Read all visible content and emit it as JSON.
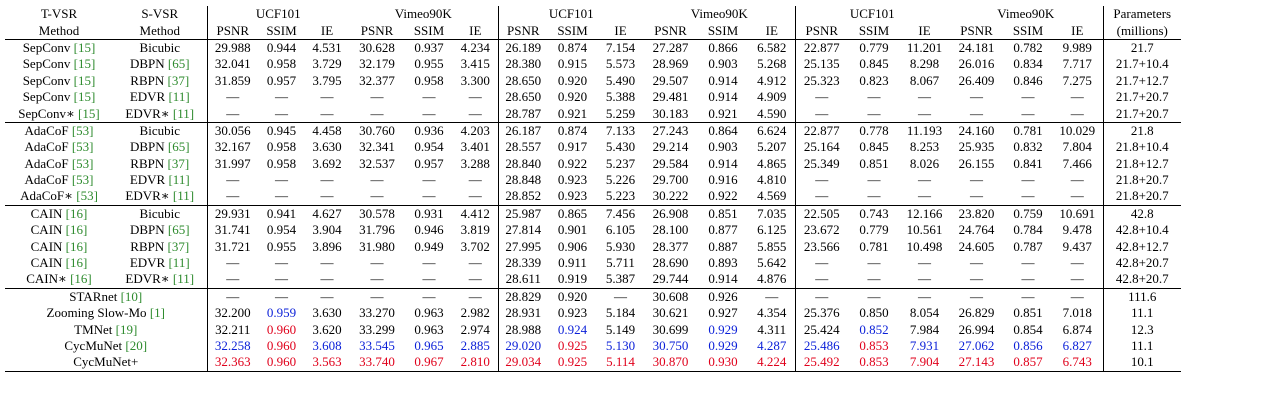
{
  "header": {
    "row1": [
      "T-VSR",
      "S-VSR",
      "UCF101",
      "Vimeo90K",
      "UCF101",
      "Vimeo90K",
      "UCF101",
      "Vimeo90K",
      "Parameters"
    ],
    "row2": [
      "Method",
      "Method",
      "PSNR",
      "SSIM",
      "IE",
      "PSNR",
      "SSIM",
      "IE",
      "PSNR",
      "SSIM",
      "IE",
      "PSNR",
      "SSIM",
      "IE",
      "PSNR",
      "SSIM",
      "IE",
      "PSNR",
      "SSIM",
      "IE",
      "(millions)"
    ]
  },
  "colors": {
    "red": "#e0001b",
    "blue": "#0a1fd8",
    "citation": "#2e8b2e"
  },
  "groups": [
    [
      {
        "t": "SepConv",
        "tr": "[15]",
        "s": "Bicubic",
        "v": [
          "29.988",
          "0.944",
          "4.531",
          "30.628",
          "0.937",
          "4.234",
          "26.189",
          "0.874",
          "7.154",
          "27.287",
          "0.866",
          "6.582",
          "22.877",
          "0.779",
          "11.201",
          "24.181",
          "0.782",
          "9.989"
        ],
        "p": "21.7"
      },
      {
        "t": "SepConv",
        "tr": "[15]",
        "s": "DBPN",
        "sr": "[65]",
        "v": [
          "32.041",
          "0.958",
          "3.729",
          "32.179",
          "0.955",
          "3.415",
          "28.380",
          "0.915",
          "5.573",
          "28.969",
          "0.903",
          "5.268",
          "25.135",
          "0.845",
          "8.298",
          "26.016",
          "0.834",
          "7.717"
        ],
        "p": "21.7+10.4"
      },
      {
        "t": "SepConv",
        "tr": "[15]",
        "s": "RBPN",
        "sr": "[37]",
        "v": [
          "31.859",
          "0.957",
          "3.795",
          "32.377",
          "0.958",
          "3.300",
          "28.650",
          "0.920",
          "5.490",
          "29.507",
          "0.914",
          "4.912",
          "25.323",
          "0.823",
          "8.067",
          "26.409",
          "0.846",
          "7.275"
        ],
        "p": "21.7+12.7"
      },
      {
        "t": "SepConv",
        "tr": "[15]",
        "s": "EDVR",
        "sr": "[11]",
        "v": [
          "—",
          "—",
          "—",
          "—",
          "—",
          "—",
          "28.650",
          "0.920",
          "5.388",
          "29.481",
          "0.914",
          "4.909",
          "—",
          "—",
          "—",
          "—",
          "—",
          "—"
        ],
        "p": "21.7+20.7"
      },
      {
        "t": "SepConv∗",
        "tr": "[15]",
        "s": "EDVR∗",
        "sr": "[11]",
        "v": [
          "—",
          "—",
          "—",
          "—",
          "—",
          "—",
          "28.787",
          "0.921",
          "5.259",
          "30.183",
          "0.921",
          "4.590",
          "—",
          "—",
          "—",
          "—",
          "—",
          "—"
        ],
        "p": "21.7+20.7"
      }
    ],
    [
      {
        "t": "AdaCoF",
        "tr": "[53]",
        "s": "Bicubic",
        "v": [
          "30.056",
          "0.945",
          "4.458",
          "30.760",
          "0.936",
          "4.203",
          "26.187",
          "0.874",
          "7.133",
          "27.243",
          "0.864",
          "6.624",
          "22.877",
          "0.778",
          "11.193",
          "24.160",
          "0.781",
          "10.029"
        ],
        "p": "21.8"
      },
      {
        "t": "AdaCoF",
        "tr": "[53]",
        "s": "DBPN",
        "sr": "[65]",
        "v": [
          "32.167",
          "0.958",
          "3.630",
          "32.341",
          "0.954",
          "3.401",
          "28.557",
          "0.917",
          "5.430",
          "29.214",
          "0.903",
          "5.207",
          "25.164",
          "0.845",
          "8.253",
          "25.935",
          "0.832",
          "7.804"
        ],
        "p": "21.8+10.4"
      },
      {
        "t": "AdaCoF",
        "tr": "[53]",
        "s": "RBPN",
        "sr": "[37]",
        "v": [
          "31.997",
          "0.958",
          "3.692",
          "32.537",
          "0.957",
          "3.288",
          "28.840",
          "0.922",
          "5.237",
          "29.584",
          "0.914",
          "4.865",
          "25.349",
          "0.851",
          "8.026",
          "26.155",
          "0.841",
          "7.466"
        ],
        "p": "21.8+12.7"
      },
      {
        "t": "AdaCoF",
        "tr": "[53]",
        "s": "EDVR",
        "sr": "[11]",
        "v": [
          "—",
          "—",
          "—",
          "—",
          "—",
          "—",
          "28.848",
          "0.923",
          "5.226",
          "29.700",
          "0.916",
          "4.810",
          "—",
          "—",
          "—",
          "—",
          "—",
          "—"
        ],
        "p": "21.8+20.7"
      },
      {
        "t": "AdaCoF∗",
        "tr": "[53]",
        "s": "EDVR∗",
        "sr": "[11]",
        "v": [
          "—",
          "—",
          "—",
          "—",
          "—",
          "—",
          "28.852",
          "0.923",
          "5.223",
          "30.222",
          "0.922",
          "4.569",
          "—",
          "—",
          "—",
          "—",
          "—",
          "—"
        ],
        "p": "21.8+20.7"
      }
    ],
    [
      {
        "t": "CAIN",
        "tr": "[16]",
        "s": "Bicubic",
        "v": [
          "29.931",
          "0.941",
          "4.627",
          "30.578",
          "0.931",
          "4.412",
          "25.987",
          "0.865",
          "7.456",
          "26.908",
          "0.851",
          "7.035",
          "22.505",
          "0.743",
          "12.166",
          "23.820",
          "0.759",
          "10.691"
        ],
        "p": "42.8"
      },
      {
        "t": "CAIN",
        "tr": "[16]",
        "s": "DBPN",
        "sr": "[65]",
        "v": [
          "31.741",
          "0.954",
          "3.904",
          "31.796",
          "0.946",
          "3.819",
          "27.814",
          "0.901",
          "6.105",
          "28.100",
          "0.877",
          "6.125",
          "23.672",
          "0.779",
          "10.561",
          "24.764",
          "0.784",
          "9.478"
        ],
        "p": "42.8+10.4"
      },
      {
        "t": "CAIN",
        "tr": "[16]",
        "s": "RBPN",
        "sr": "[37]",
        "v": [
          "31.721",
          "0.955",
          "3.896",
          "31.980",
          "0.949",
          "3.702",
          "27.995",
          "0.906",
          "5.930",
          "28.377",
          "0.887",
          "5.855",
          "23.566",
          "0.781",
          "10.498",
          "24.605",
          "0.787",
          "9.437"
        ],
        "p": "42.8+12.7"
      },
      {
        "t": "CAIN",
        "tr": "[16]",
        "s": "EDVR",
        "sr": "[11]",
        "v": [
          "—",
          "—",
          "—",
          "—",
          "—",
          "—",
          "28.339",
          "0.911",
          "5.711",
          "28.690",
          "0.893",
          "5.642",
          "—",
          "—",
          "—",
          "—",
          "—",
          "—"
        ],
        "p": "42.8+20.7"
      },
      {
        "t": "CAIN∗",
        "tr": "[16]",
        "s": "EDVR∗",
        "sr": "[11]",
        "v": [
          "—",
          "—",
          "—",
          "—",
          "—",
          "—",
          "28.611",
          "0.919",
          "5.387",
          "29.744",
          "0.914",
          "4.876",
          "—",
          "—",
          "—",
          "—",
          "—",
          "—"
        ],
        "p": "42.8+20.7"
      }
    ],
    [
      {
        "t": "STARnet",
        "tr": "[10]",
        "v": [
          "—",
          "—",
          "—",
          "—",
          "—",
          "—",
          "28.829",
          "0.920",
          "—",
          "30.608",
          "0.926",
          "—",
          "—",
          "—",
          "—",
          "—",
          "—",
          "—"
        ],
        "p": "111.6"
      },
      {
        "t": "Zooming Slow-Mo",
        "tr": "[1]",
        "v": [
          "32.200",
          "0.959",
          "3.630",
          "33.270",
          "0.963",
          "2.982",
          "28.931",
          "0.923",
          "5.184",
          "30.621",
          "0.927",
          "4.354",
          "25.376",
          "0.850",
          "8.054",
          "26.829",
          "0.851",
          "7.018"
        ],
        "c": {
          "1": "b"
        },
        "p": "11.1"
      },
      {
        "t": "TMNet",
        "tr": "[19]",
        "v": [
          "32.211",
          "0.960",
          "3.620",
          "33.299",
          "0.963",
          "2.974",
          "28.988",
          "0.924",
          "5.149",
          "30.699",
          "0.929",
          "4.311",
          "25.424",
          "0.852",
          "7.984",
          "26.994",
          "0.854",
          "6.874"
        ],
        "c": {
          "1": "r",
          "7": "b",
          "10": "b",
          "13": "b"
        },
        "p": "12.3"
      },
      {
        "t": "CycMuNet",
        "tr": "[20]",
        "v": [
          "32.258",
          "0.960",
          "3.608",
          "33.545",
          "0.965",
          "2.885",
          "29.020",
          "0.925",
          "5.130",
          "30.750",
          "0.929",
          "4.287",
          "25.486",
          "0.853",
          "7.931",
          "27.062",
          "0.856",
          "6.827"
        ],
        "c": {
          "0": "b",
          "1": "r",
          "2": "b",
          "3": "b",
          "4": "b",
          "5": "b",
          "6": "b",
          "7": "r",
          "8": "b",
          "9": "b",
          "10": "b",
          "11": "b",
          "12": "b",
          "13": "r",
          "14": "b",
          "15": "b",
          "16": "b",
          "17": "b"
        },
        "p": "11.1"
      },
      {
        "t": "CycMuNet+",
        "v": [
          "32.363",
          "0.960",
          "3.563",
          "33.740",
          "0.967",
          "2.810",
          "29.034",
          "0.925",
          "5.114",
          "30.870",
          "0.930",
          "4.224",
          "25.492",
          "0.853",
          "7.904",
          "27.143",
          "0.857",
          "6.743"
        ],
        "c": {
          "0": "r",
          "1": "r",
          "2": "r",
          "3": "r",
          "4": "r",
          "5": "r",
          "6": "r",
          "7": "r",
          "8": "r",
          "9": "r",
          "10": "r",
          "11": "r",
          "12": "r",
          "13": "r",
          "14": "r",
          "15": "r",
          "16": "r",
          "17": "r"
        },
        "p": "10.1"
      }
    ]
  ]
}
